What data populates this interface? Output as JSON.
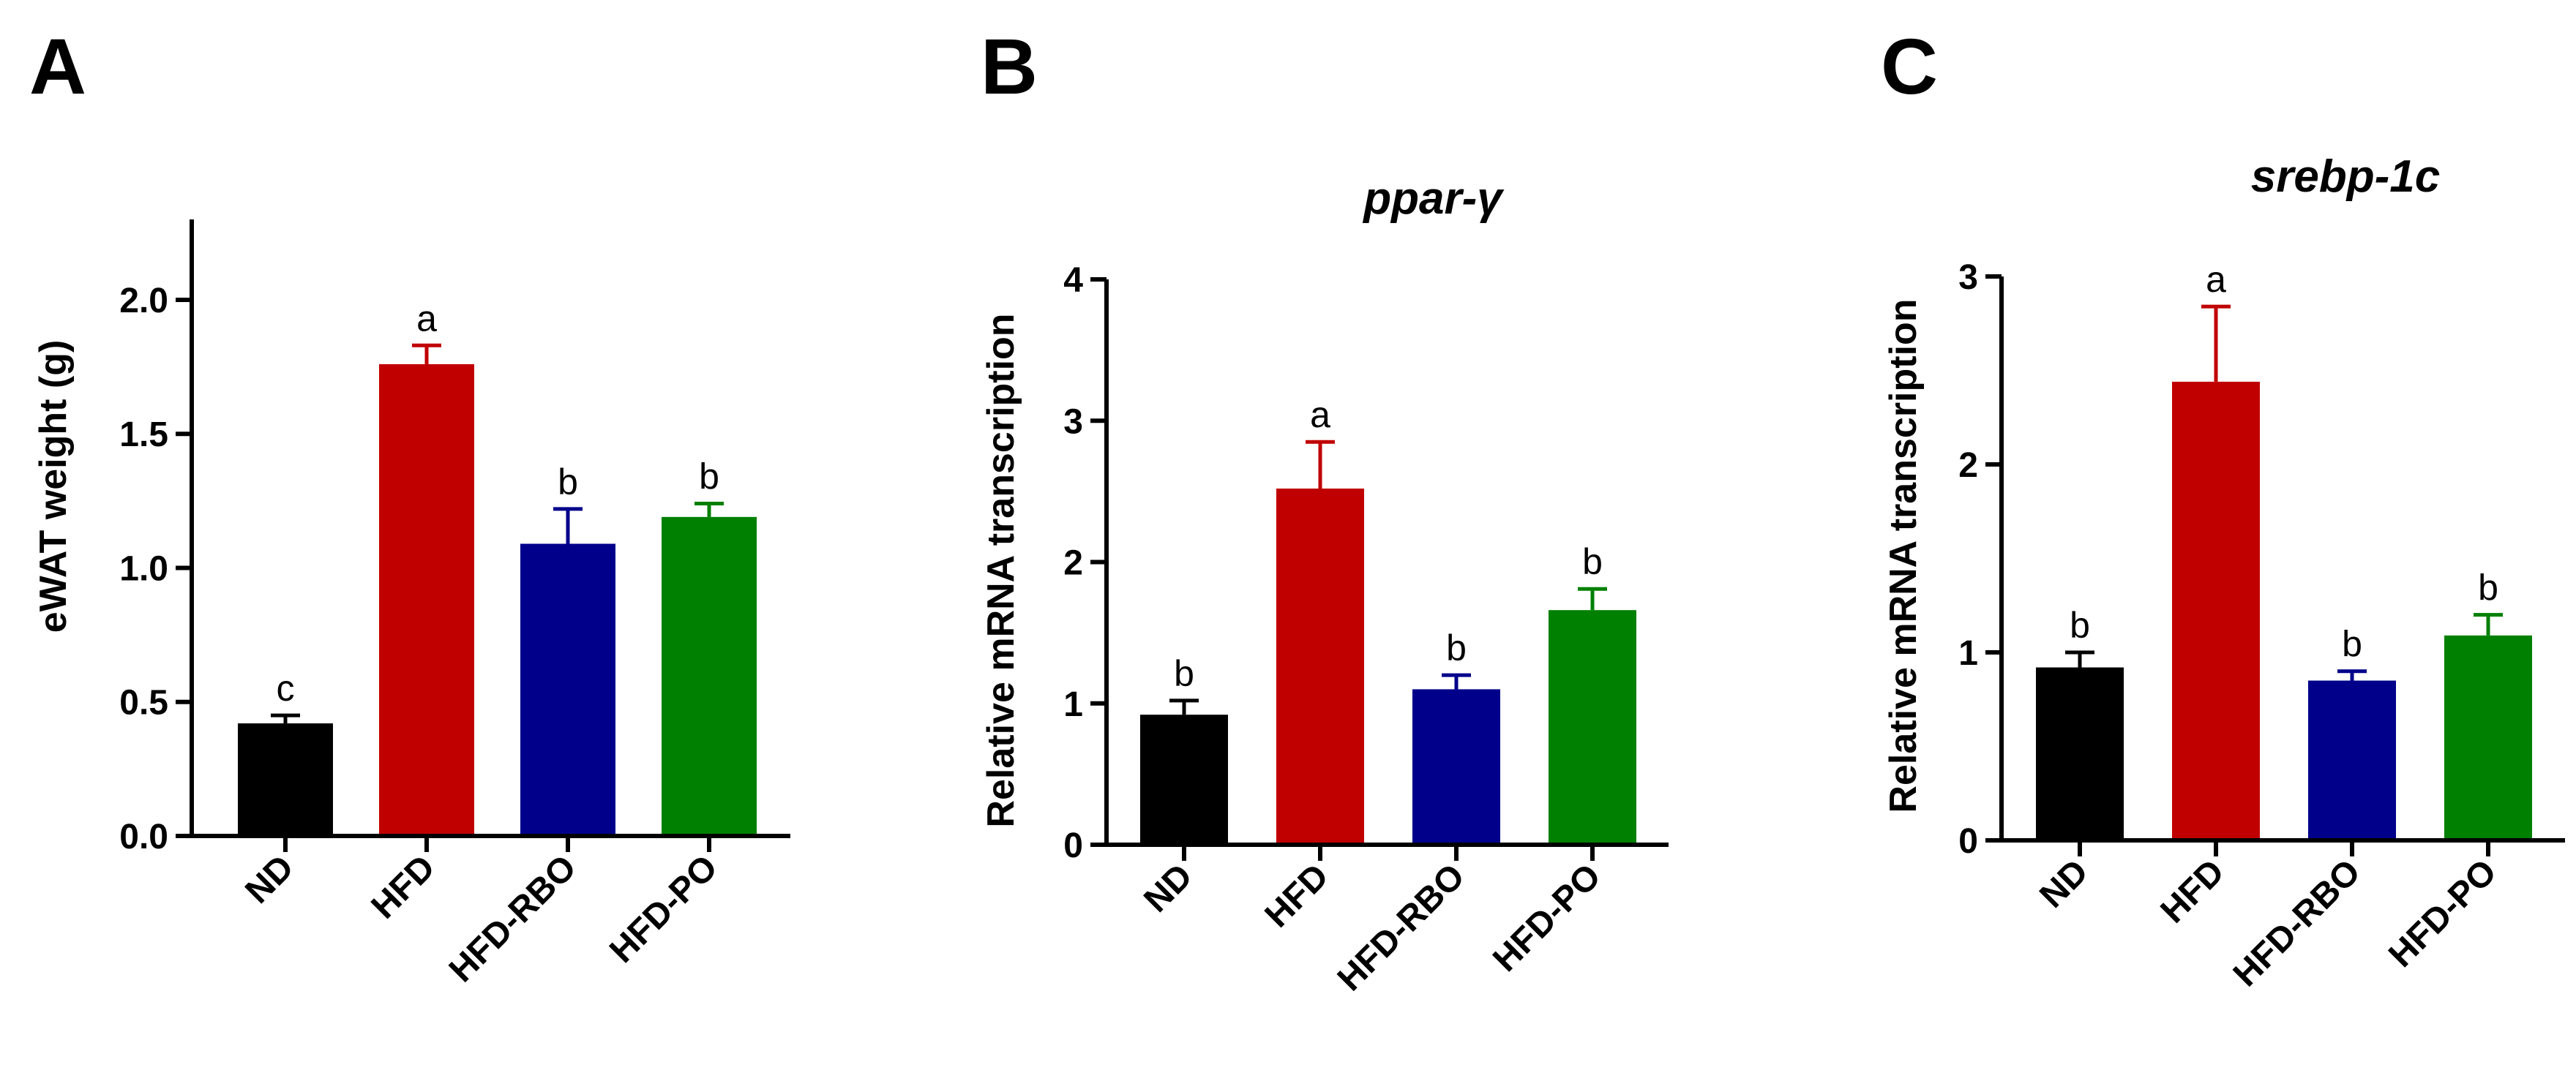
{
  "chart_data": [
    {
      "type": "bar",
      "panel": "A",
      "title": "",
      "ylabel": "eWAT weight (g)",
      "xlabel": "",
      "ylim": [
        0,
        2.3
      ],
      "yticks": [
        "0.0",
        "0.5",
        "1.0",
        "1.5",
        "2.0"
      ],
      "categories": [
        "ND",
        "HFD",
        "HFD-RBO",
        "HFD-PO"
      ],
      "values": [
        0.42,
        1.76,
        1.09,
        1.19
      ],
      "errors": [
        0.03,
        0.07,
        0.13,
        0.05
      ],
      "significance": [
        "c",
        "a",
        "b",
        "b"
      ],
      "colors": [
        "#000000",
        "#c00000",
        "#00008b",
        "#008000"
      ],
      "grid": false,
      "legend": "none"
    },
    {
      "type": "bar",
      "panel": "B",
      "title": "ppar-γ",
      "ylabel": "Relative mRNA transcription",
      "xlabel": "",
      "ylim": [
        0,
        4
      ],
      "yticks": [
        "0",
        "1",
        "2",
        "3",
        "4"
      ],
      "categories": [
        "ND",
        "HFD",
        "HFD-RBO",
        "HFD-PO"
      ],
      "values": [
        0.92,
        2.52,
        1.1,
        1.66
      ],
      "errors": [
        0.1,
        0.33,
        0.1,
        0.15
      ],
      "significance": [
        "b",
        "a",
        "b",
        "b"
      ],
      "colors": [
        "#000000",
        "#c00000",
        "#00008b",
        "#008000"
      ],
      "grid": false,
      "legend": "none"
    },
    {
      "type": "bar",
      "panel": "C",
      "title": "srebp-1c",
      "ylabel": "Relative mRNA transcription",
      "xlabel": "",
      "ylim": [
        0,
        3
      ],
      "yticks": [
        "0",
        "1",
        "2",
        "3"
      ],
      "categories": [
        "ND",
        "HFD",
        "HFD-RBO",
        "HFD-PO"
      ],
      "values": [
        0.92,
        2.44,
        0.85,
        1.09
      ],
      "errors": [
        0.08,
        0.4,
        0.05,
        0.11
      ],
      "significance": [
        "b",
        "a",
        "b",
        "b"
      ],
      "colors": [
        "#000000",
        "#c00000",
        "#00008b",
        "#008000"
      ],
      "grid": false,
      "legend": "none"
    }
  ]
}
